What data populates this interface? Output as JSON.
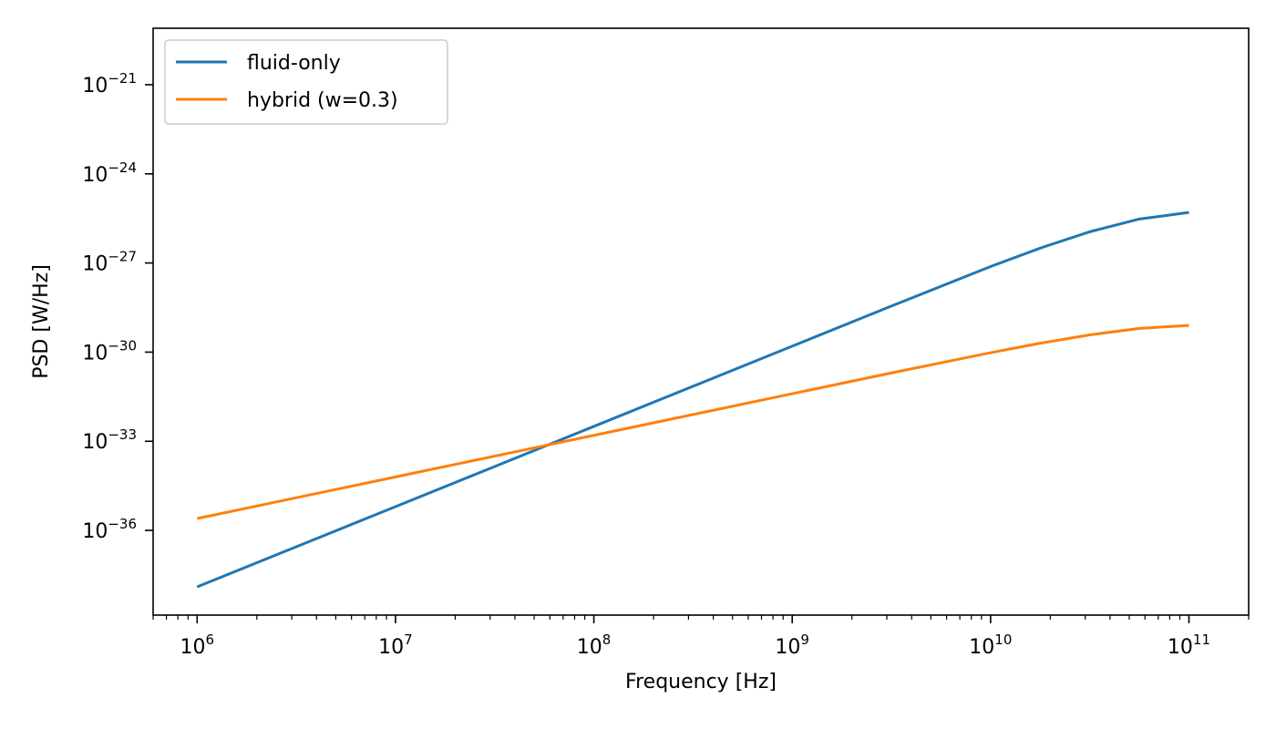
{
  "chart_data": {
    "type": "line",
    "xlabel": "Frequency [Hz]",
    "ylabel": "PSD [W/Hz]",
    "xscale": "log",
    "yscale": "log",
    "xlim": [
      600000,
      200000000000
    ],
    "ylim_exponent": [
      -38.85,
      -19.1
    ],
    "x_ticks": [
      {
        "exp": 6,
        "label": "10",
        "sup": "6"
      },
      {
        "exp": 7,
        "label": "10",
        "sup": "7"
      },
      {
        "exp": 8,
        "label": "10",
        "sup": "8"
      },
      {
        "exp": 9,
        "label": "10",
        "sup": "9"
      },
      {
        "exp": 10,
        "label": "10",
        "sup": "10"
      },
      {
        "exp": 11,
        "label": "10",
        "sup": "11"
      }
    ],
    "y_ticks": [
      {
        "exp": -21,
        "label": "10",
        "sup": "−21"
      },
      {
        "exp": -24,
        "label": "10",
        "sup": "−24"
      },
      {
        "exp": -27,
        "label": "10",
        "sup": "−27"
      },
      {
        "exp": -30,
        "label": "10",
        "sup": "−30"
      },
      {
        "exp": -33,
        "label": "10",
        "sup": "−33"
      },
      {
        "exp": -36,
        "label": "10",
        "sup": "−36"
      }
    ],
    "grid": false,
    "legend_position": "top-left",
    "series": [
      {
        "name": "fluid-only",
        "color": "#1f77b4",
        "points_log10": [
          [
            6.0,
            -37.9
          ],
          [
            6.5,
            -36.55
          ],
          [
            7.0,
            -35.2
          ],
          [
            7.5,
            -33.85
          ],
          [
            8.0,
            -32.5
          ],
          [
            8.5,
            -31.15
          ],
          [
            9.0,
            -29.8
          ],
          [
            9.5,
            -28.45
          ],
          [
            10.0,
            -27.12
          ],
          [
            10.25,
            -26.5
          ],
          [
            10.5,
            -25.95
          ],
          [
            10.75,
            -25.52
          ],
          [
            11.0,
            -25.3
          ]
        ]
      },
      {
        "name": "hybrid (w=0.3)",
        "color": "#ff7f0e",
        "points_log10": [
          [
            6.0,
            -35.6
          ],
          [
            6.5,
            -34.9
          ],
          [
            7.0,
            -34.2
          ],
          [
            7.5,
            -33.5
          ],
          [
            8.0,
            -32.8
          ],
          [
            8.5,
            -32.1
          ],
          [
            9.0,
            -31.4
          ],
          [
            9.5,
            -30.7
          ],
          [
            10.0,
            -30.02
          ],
          [
            10.25,
            -29.7
          ],
          [
            10.5,
            -29.42
          ],
          [
            10.75,
            -29.2
          ],
          [
            11.0,
            -29.1
          ]
        ]
      }
    ]
  }
}
